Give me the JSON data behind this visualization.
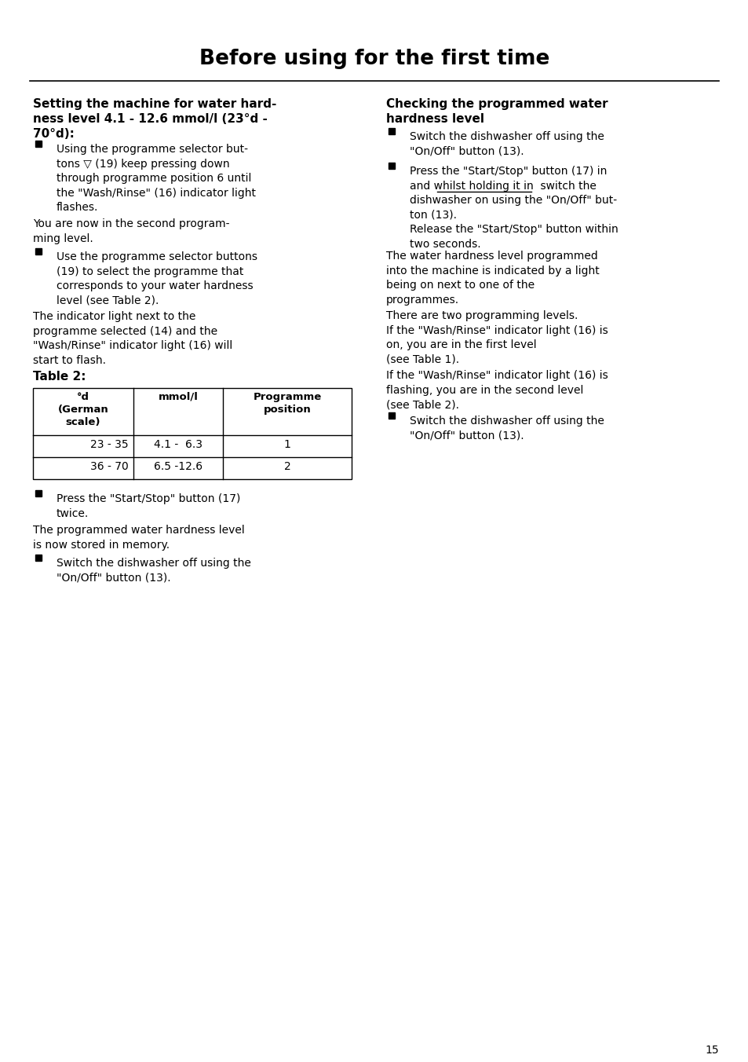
{
  "title": "Before using for the first time",
  "page_number": "15",
  "background_color": "#ffffff",
  "text_color": "#000000",
  "left_heading": "Setting the machine for water hard-\nness level 4.1 - 12.6 mmol/l (23°d -\n70°d):",
  "right_heading": "Checking the programmed water\nhardness level",
  "table2_label": "Table 2:",
  "table_headers": [
    "°d\n(German\nscale)",
    "mmol/l",
    "Programme\nposition"
  ],
  "table_rows": [
    [
      "23 - 35",
      "4.1 -  6.3",
      "1"
    ],
    [
      "36 - 70",
      "6.5 -12.6",
      "2"
    ]
  ]
}
